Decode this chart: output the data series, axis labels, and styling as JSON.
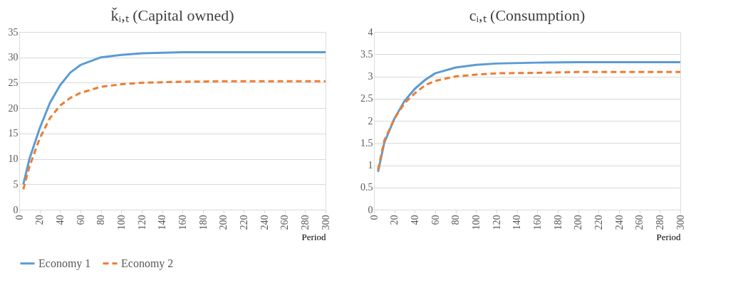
{
  "chart_data": [
    {
      "type": "line",
      "title": "ǩᵢ,ₜ (Capital owned)",
      "xlabel": "Period",
      "xlim": [
        0,
        300
      ],
      "xticks": [
        0,
        20,
        40,
        60,
        80,
        100,
        120,
        140,
        160,
        180,
        200,
        220,
        240,
        260,
        280,
        300
      ],
      "ylim": [
        0,
        35
      ],
      "yticks": [
        0,
        5,
        10,
        15,
        20,
        25,
        30,
        35
      ],
      "grid": "y",
      "legend": "bottom",
      "marker": "none",
      "x": [
        4,
        10,
        20,
        30,
        40,
        50,
        60,
        80,
        100,
        120,
        160,
        200,
        300
      ],
      "series": [
        {
          "name": "Economy 1",
          "color": "#5b9bd5",
          "line_style": "solid",
          "values": [
            5,
            10,
            16,
            21,
            24.5,
            27,
            28.5,
            30,
            30.5,
            30.8,
            31,
            31,
            31
          ]
        },
        {
          "name": "Economy 2",
          "color": "#ed7d31",
          "line_style": "dashed",
          "values": [
            4,
            8.5,
            14,
            18,
            20.5,
            22,
            23,
            24.2,
            24.7,
            25,
            25.2,
            25.3,
            25.3
          ]
        }
      ]
    },
    {
      "type": "line",
      "title": "cᵢ,ₜ (Consumption)",
      "xlabel": "Period",
      "xlim": [
        0,
        300
      ],
      "xticks": [
        0,
        20,
        40,
        60,
        80,
        100,
        120,
        140,
        160,
        180,
        200,
        220,
        240,
        260,
        280,
        300
      ],
      "ylim": [
        0,
        4
      ],
      "yticks": [
        0,
        0.5,
        1,
        1.5,
        2,
        2.5,
        3,
        3.5,
        4
      ],
      "grid": "y",
      "legend": "bottom",
      "marker": "none",
      "x": [
        4,
        10,
        20,
        30,
        40,
        50,
        60,
        80,
        100,
        120,
        160,
        200,
        300
      ],
      "series": [
        {
          "name": "Economy 1",
          "color": "#5b9bd5",
          "line_style": "solid",
          "values": [
            0.85,
            1.5,
            2.05,
            2.45,
            2.72,
            2.92,
            3.07,
            3.2,
            3.26,
            3.29,
            3.31,
            3.32,
            3.32
          ]
        },
        {
          "name": "Economy 2",
          "color": "#ed7d31",
          "line_style": "dashed",
          "values": [
            0.9,
            1.55,
            2.05,
            2.4,
            2.62,
            2.8,
            2.9,
            3.0,
            3.04,
            3.07,
            3.08,
            3.1,
            3.1
          ]
        }
      ]
    }
  ]
}
